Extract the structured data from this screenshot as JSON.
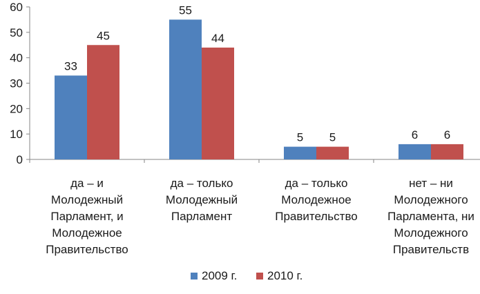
{
  "chart_data": {
    "type": "bar",
    "title": "",
    "xlabel": "",
    "ylabel": "",
    "ylim": [
      0,
      60
    ],
    "yticks": [
      0,
      10,
      20,
      30,
      40,
      50,
      60
    ],
    "grid": false,
    "legend_position": "bottom",
    "categories": [
      [
        "да – и",
        "Молодежный",
        "Парламент, и",
        "Молодежное",
        "Правительство"
      ],
      [
        "да – только",
        "Молодежный",
        "Парламент"
      ],
      [
        "да – только",
        "Молодежное",
        "Правительство"
      ],
      [
        "нет – ни",
        "Молодежного",
        "Парламента, ни",
        "Молодежного",
        "Правительств"
      ]
    ],
    "series": [
      {
        "name": "2009 г.",
        "color": "#4F81BD",
        "values": [
          33,
          55,
          5,
          6
        ]
      },
      {
        "name": "2010 г.",
        "color": "#C0504D",
        "values": [
          45,
          44,
          5,
          6
        ]
      }
    ]
  }
}
